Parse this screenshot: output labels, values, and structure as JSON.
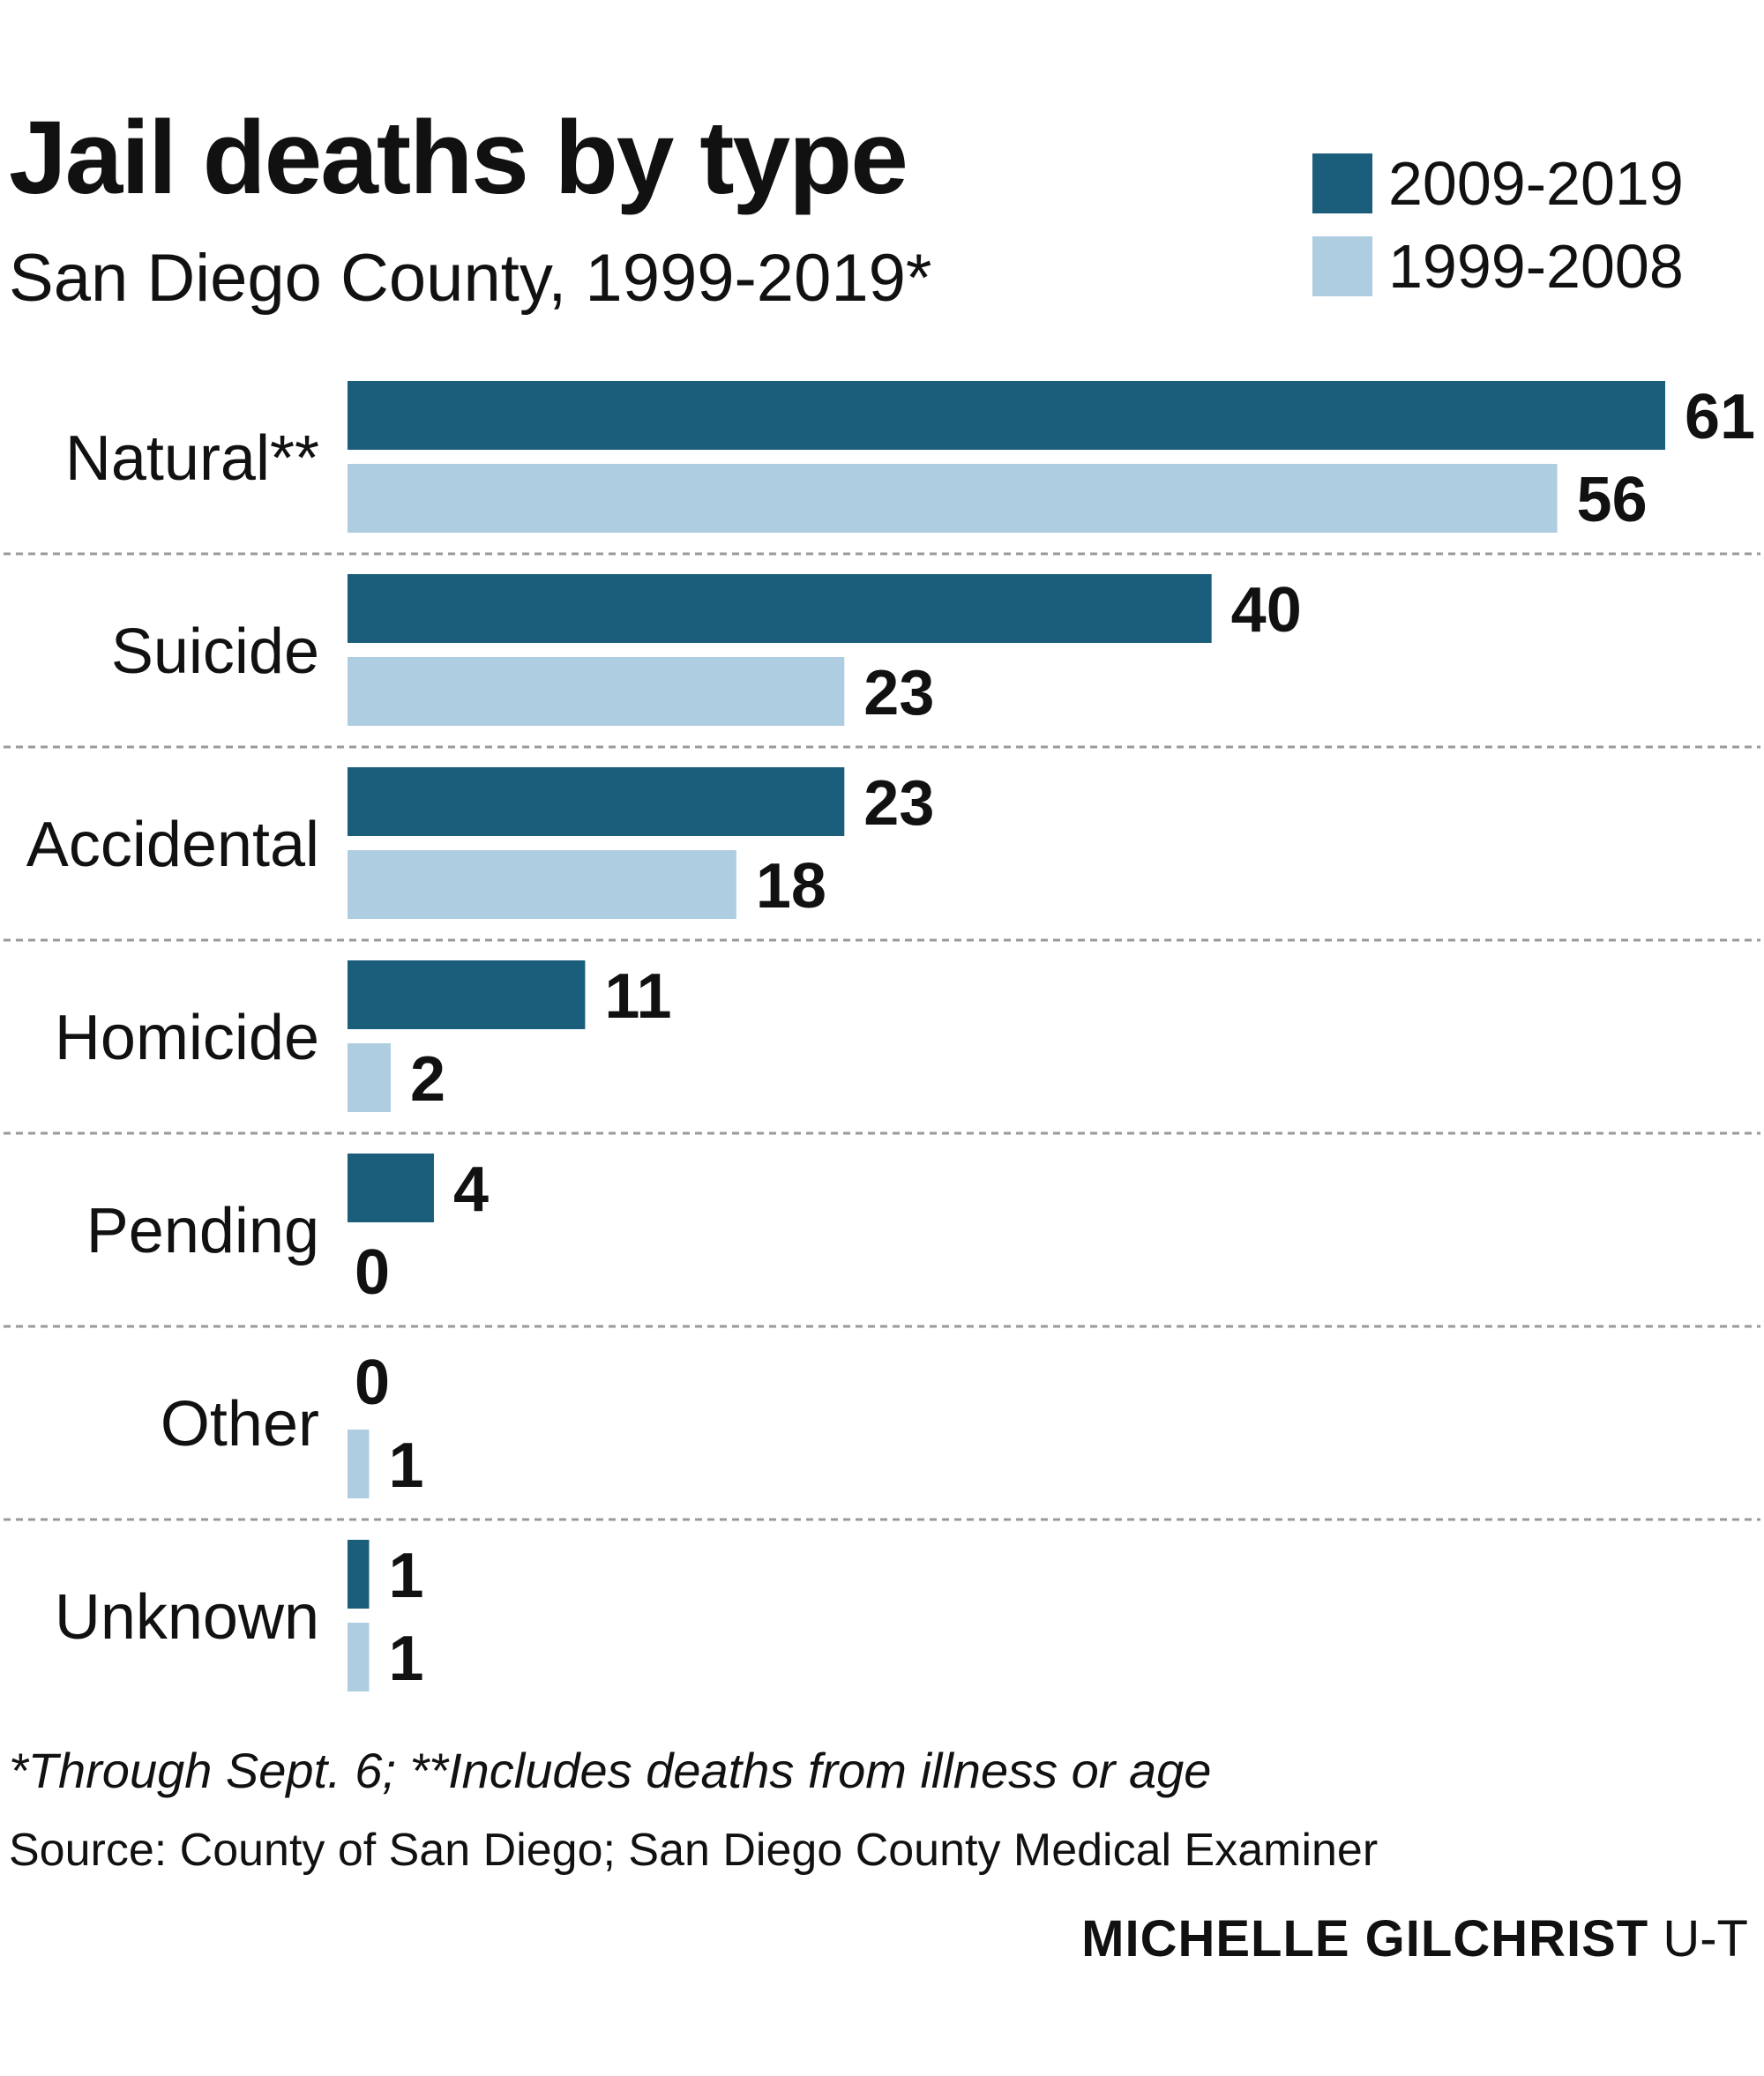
{
  "header": {
    "title": "Jail deaths by type",
    "subtitle": "San Diego County, 1999-2019*"
  },
  "legend": [
    {
      "label": "2009-2019",
      "color": "#1b5e7b"
    },
    {
      "label": "1999-2008",
      "color": "#aecde0"
    }
  ],
  "chart_data": {
    "type": "bar",
    "orientation": "horizontal",
    "categories": [
      "Natural**",
      "Suicide",
      "Accidental",
      "Homicide",
      "Pending",
      "Other",
      "Unknown"
    ],
    "series": [
      {
        "name": "2009-2019",
        "color": "#1b5e7b",
        "values": [
          61,
          40,
          23,
          11,
          4,
          0,
          1
        ]
      },
      {
        "name": "1999-2008",
        "color": "#aecde0",
        "values": [
          56,
          23,
          18,
          2,
          0,
          1,
          1
        ]
      }
    ],
    "xlim": [
      0,
      61
    ],
    "grid": false,
    "legend_position": "top-right",
    "data_labels": true,
    "separators": "dashed"
  },
  "footer": {
    "note": "*Through Sept. 6; **Includes deaths from illness or age",
    "source": "Source: County of San Diego; San Diego County Medical Examiner",
    "credit_name": "MICHELLE GILCHRIST",
    "credit_org": "U-T"
  }
}
